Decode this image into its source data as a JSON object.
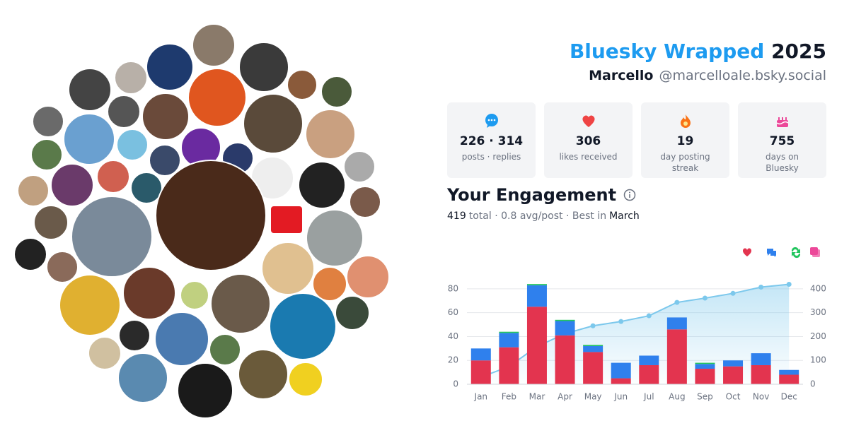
{
  "header": {
    "title": "Bluesky Wrapped",
    "year": "2025",
    "name": "Marcello",
    "handle": "@marcelloale.bsky.social"
  },
  "stats": [
    {
      "value": "226 · 314",
      "label": "posts · replies"
    },
    {
      "value": "306",
      "label": "likes received"
    },
    {
      "value": "19",
      "label": "day posting streak"
    },
    {
      "value": "755",
      "label": "days on Bluesky"
    }
  ],
  "engagement": {
    "title": "Your Engagement",
    "total": "419",
    "summary": "total · 0.8 avg/post · Best in",
    "best": "March"
  },
  "chart_data": {
    "type": "bar",
    "stacked": true,
    "categories": [
      "Jan",
      "Feb",
      "Mar",
      "Apr",
      "May",
      "Jun",
      "Jul",
      "Aug",
      "Sep",
      "Oct",
      "Nov",
      "Dec"
    ],
    "series": [
      {
        "color": "#e3344f",
        "values": [
          20,
          31,
          65,
          41,
          27,
          5,
          16,
          46,
          13,
          15,
          16,
          8
        ]
      },
      {
        "color": "#2f80ed",
        "values": [
          10,
          12,
          18,
          12,
          5,
          13,
          8,
          10,
          4,
          5,
          10,
          4
        ]
      },
      {
        "color": "#22c55e",
        "values": [
          0,
          1,
          1,
          1,
          1,
          0,
          0,
          0,
          1,
          0,
          0,
          0
        ]
      },
      {
        "color": "#7cc8ec",
        "type": "line",
        "axis": "y2",
        "values": [
          30,
          74,
          158,
          212,
          245,
          263,
          287,
          343,
          361,
          381,
          407,
          419
        ]
      }
    ],
    "ylim": [
      0,
      90
    ],
    "yticks": [
      0,
      20,
      40,
      60,
      80
    ],
    "y2lim": [
      0,
      450
    ],
    "y2ticks": [
      0,
      100,
      200,
      300,
      400
    ],
    "grid": true
  }
}
